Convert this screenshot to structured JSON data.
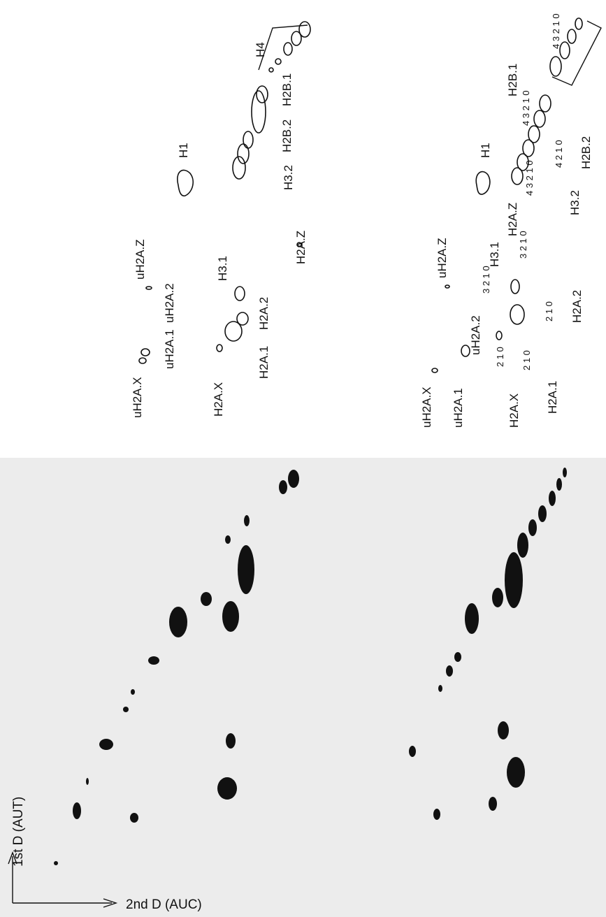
{
  "left_diagram": {
    "labels": [
      "uH2A.X",
      "uH2A.1",
      "uH2A.2",
      "uH2A.Z",
      "H2A.X",
      "H2A.1",
      "H2A.2",
      "H3.1",
      "H2A.Z",
      "H1",
      "H3.2",
      "H2B.2",
      "H2B.1",
      "H4"
    ]
  },
  "right_diagram": {
    "labels": [
      "uH2A.X",
      "uH2A.1",
      "uH2A.2",
      "uH2A.Z",
      "H2A.X",
      "H2A.1",
      "H2A.2",
      "H3.1",
      "H2A.Z",
      "H1",
      "H3.2",
      "H2B.2",
      "H2B.1"
    ],
    "index_labels": [
      "2 1 0",
      "2 1 0",
      "2 1 0",
      "3 2 1 0",
      "3 2 1 0",
      "4 3 2 1 0",
      "4 2 1 0",
      "4 3 2 1 0",
      "4 3 2 1 0"
    ]
  },
  "gel": {
    "y_axis_label": "1st D (AUT)",
    "x_axis_label": "2nd D (AUC)"
  }
}
